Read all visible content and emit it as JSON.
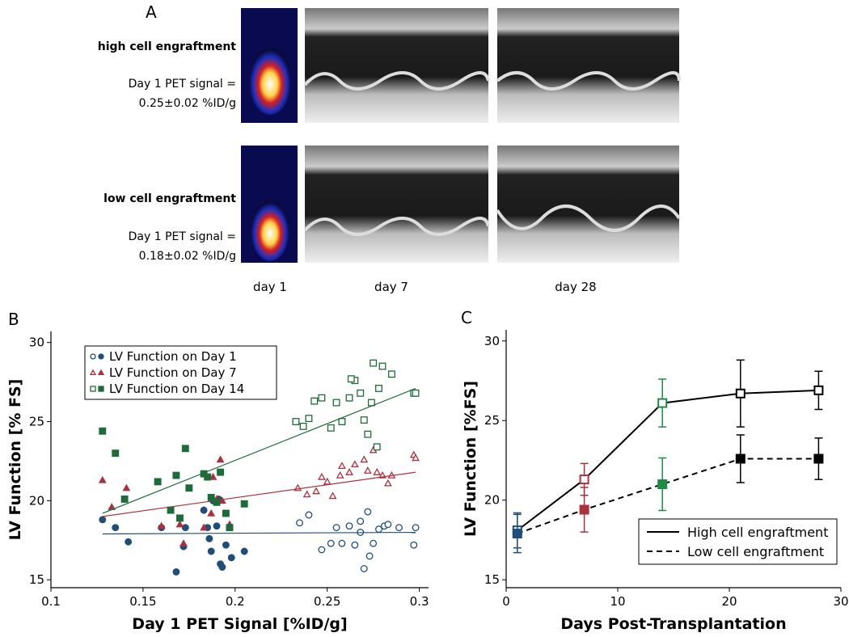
{
  "panel_a": {
    "label": "A",
    "rows": [
      {
        "title": "high cell engraftment",
        "line1": "Day 1 PET signal =",
        "line2": "0.25±0.02 %ID/g"
      },
      {
        "title": "low cell engraftment",
        "line1": "Day 1 PET signal =",
        "line2": "0.18±0.02 %ID/g"
      }
    ],
    "columns": [
      "day 1",
      "day 7",
      "day 28"
    ]
  },
  "chart_data": [
    {
      "type": "scatter",
      "panel": "B",
      "xlabel": "Day 1 PET Signal [%ID/g]",
      "ylabel": "LV Function [% FS]",
      "xlim": [
        0.1,
        0.305
      ],
      "ylim": [
        14.5,
        30.7
      ],
      "xticks": [
        0.1,
        0.15,
        0.2,
        0.25,
        0.3
      ],
      "yticks": [
        15,
        20,
        25,
        30
      ],
      "legend": "upper-left",
      "series": [
        {
          "name": "LV Function on Day 1",
          "color": "#1f4e79",
          "marker": "circle",
          "groups": [
            {
              "fill": "filled",
              "x": [
                0.128,
                0.135,
                0.142,
                0.16,
                0.168,
                0.172,
                0.173,
                0.183,
                0.185,
                0.186,
                0.187,
                0.188,
                0.19,
                0.191,
                0.192,
                0.193,
                0.195,
                0.198,
                0.205
              ],
              "values": [
                18.8,
                18.3,
                17.4,
                18.3,
                15.5,
                17.1,
                18.3,
                19.4,
                18.3,
                17.6,
                16.8,
                20.0,
                18.4,
                20.1,
                16.0,
                15.8,
                17.2,
                16.4,
                16.8
              ]
            },
            {
              "fill": "open",
              "x": [
                0.235,
                0.24,
                0.247,
                0.252,
                0.255,
                0.258,
                0.262,
                0.265,
                0.268,
                0.27,
                0.272,
                0.273,
                0.275,
                0.278,
                0.281,
                0.283,
                0.289,
                0.297,
                0.298,
                0.268
              ],
              "values": [
                18.6,
                19.1,
                16.9,
                17.3,
                18.3,
                17.3,
                18.4,
                17.2,
                18.0,
                15.7,
                19.3,
                16.5,
                17.3,
                18.2,
                18.4,
                18.5,
                18.3,
                17.2,
                18.3,
                18.7
              ]
            }
          ],
          "fit": {
            "x": [
              0.128,
              0.298
            ],
            "values": [
              17.9,
              18.0
            ]
          }
        },
        {
          "name": "LV Function on Day 7",
          "color": "#a83240",
          "marker": "triangle",
          "groups": [
            {
              "fill": "filled",
              "x": [
                0.128,
                0.133,
                0.141,
                0.16,
                0.17,
                0.172,
                0.183,
                0.187,
                0.188,
                0.19,
                0.192,
                0.193,
                0.197
              ],
              "values": [
                21.3,
                19.6,
                20.8,
                18.4,
                18.5,
                17.3,
                18.3,
                19.2,
                21.5,
                20.1,
                22.6,
                20.0,
                18.5
              ]
            },
            {
              "fill": "open",
              "x": [
                0.234,
                0.239,
                0.244,
                0.247,
                0.25,
                0.253,
                0.258,
                0.262,
                0.265,
                0.27,
                0.272,
                0.275,
                0.277,
                0.28,
                0.283,
                0.285,
                0.297,
                0.298,
                0.257
              ],
              "values": [
                20.8,
                20.4,
                20.6,
                21.5,
                21.2,
                20.3,
                22.2,
                21.8,
                22.3,
                22.6,
                21.9,
                23.2,
                21.8,
                21.6,
                21.1,
                21.6,
                22.9,
                22.7,
                21.6
              ]
            }
          ],
          "fit": {
            "x": [
              0.128,
              0.298
            ],
            "values": [
              19.0,
              21.8
            ]
          }
        },
        {
          "name": "LV Function on Day 14",
          "color": "#1e6b3a",
          "marker": "square",
          "groups": [
            {
              "fill": "filled",
              "x": [
                0.128,
                0.135,
                0.14,
                0.158,
                0.165,
                0.168,
                0.173,
                0.175,
                0.183,
                0.185,
                0.187,
                0.19,
                0.192,
                0.195,
                0.197,
                0.205,
                0.17
              ],
              "values": [
                24.4,
                23.0,
                20.1,
                21.2,
                19.4,
                21.6,
                23.3,
                20.8,
                21.7,
                21.5,
                20.2,
                19.9,
                21.8,
                19.2,
                18.3,
                19.8,
                18.9
              ]
            },
            {
              "fill": "open",
              "x": [
                0.233,
                0.237,
                0.24,
                0.243,
                0.247,
                0.252,
                0.255,
                0.258,
                0.262,
                0.265,
                0.268,
                0.27,
                0.272,
                0.274,
                0.277,
                0.278,
                0.275,
                0.28,
                0.285,
                0.297,
                0.298,
                0.263
              ],
              "values": [
                25.0,
                24.7,
                25.2,
                26.3,
                26.5,
                24.6,
                26.2,
                25.0,
                26.5,
                27.6,
                26.8,
                25.1,
                24.2,
                26.2,
                23.4,
                27.1,
                28.7,
                28.5,
                28.0,
                26.8,
                26.8,
                27.7
              ]
            }
          ],
          "fit": {
            "x": [
              0.128,
              0.298
            ],
            "values": [
              19.2,
              27.1
            ]
          }
        }
      ]
    },
    {
      "type": "line",
      "panel": "C",
      "xlabel": "Days Post-Transplantation",
      "ylabel": "LV Function [%FS]",
      "xlim": [
        0,
        30
      ],
      "ylim": [
        14.5,
        30.7
      ],
      "xticks": [
        0,
        10,
        20,
        30
      ],
      "yticks": [
        15,
        20,
        25,
        30
      ],
      "legend": "lower-right",
      "x": [
        1,
        7,
        14,
        21,
        28
      ],
      "point_colors": [
        "#1f4e79",
        "#a83240",
        "#1e8a45",
        "#000000",
        "#000000"
      ],
      "series": [
        {
          "name": "High cell engraftment",
          "dash": "solid",
          "marker": "open",
          "values": [
            18.1,
            21.3,
            26.1,
            26.7,
            26.9
          ],
          "errors": [
            1.1,
            1.0,
            1.5,
            2.1,
            1.2
          ]
        },
        {
          "name": "Low cell engraftment",
          "dash": "dashed",
          "marker": "filled",
          "values": [
            17.9,
            19.4,
            21.0,
            22.6,
            22.6
          ],
          "errors": [
            1.2,
            1.4,
            1.65,
            1.5,
            1.3
          ]
        }
      ]
    }
  ]
}
